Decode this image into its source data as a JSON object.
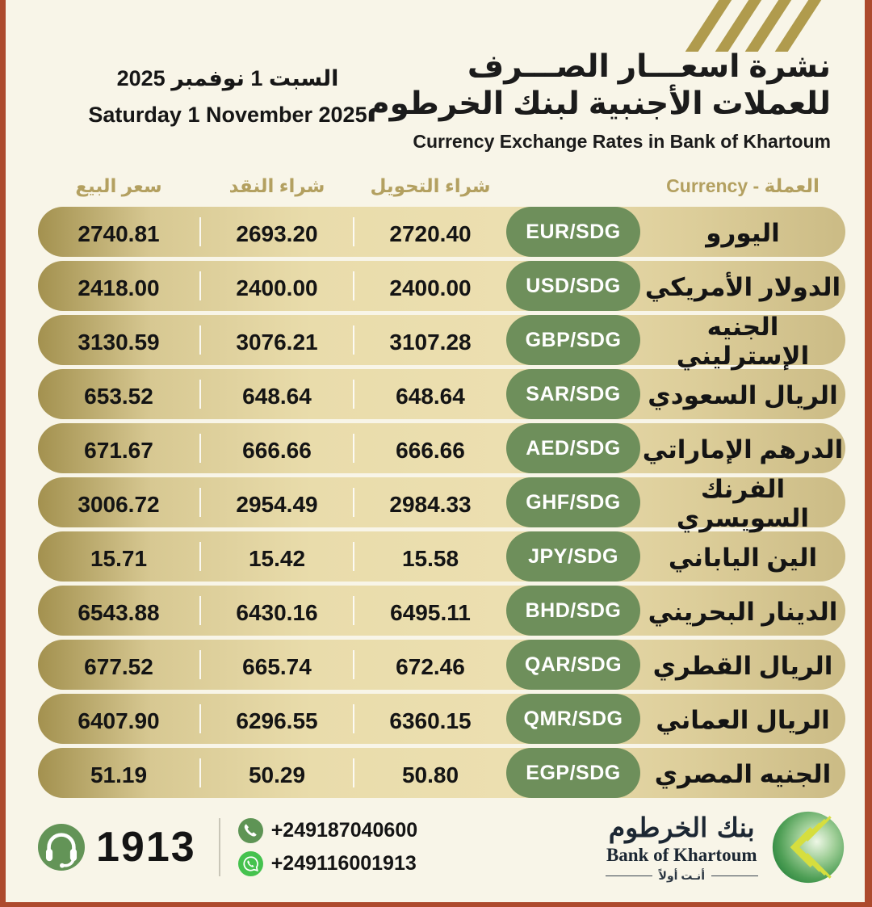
{
  "page": {
    "card_bg": "#f8f5e8",
    "frame_color": "#ad4a2d",
    "stripe_color": "#b09b4d"
  },
  "header": {
    "title_ar_line1": "نشرة اسعـــار الصـــرف",
    "title_ar_line2": "للعملات الأجنبية لبنك الخرطوم",
    "title_en": "Currency Exchange Rates in Bank of Khartoum",
    "date_ar": "السبت 1 نوفمبر 2025",
    "date_en": "Saturday 1 November 2025"
  },
  "table": {
    "headers": {
      "sell": "سعر البيع",
      "cash_buy": "شراء النقد",
      "transfer_buy": "شراء التحويل",
      "currency": "العملة - Currency"
    },
    "rows": [
      {
        "name_ar": "اليورو",
        "code": "EUR/SDG",
        "transfer_buy": "2720.40",
        "cash_buy": "2693.20",
        "sell": "2740.81"
      },
      {
        "name_ar": "الدولار الأمريكي",
        "code": "USD/SDG",
        "transfer_buy": "2400.00",
        "cash_buy": "2400.00",
        "sell": "2418.00"
      },
      {
        "name_ar": "الجنيه الإسترليني",
        "code": "GBP/SDG",
        "transfer_buy": "3107.28",
        "cash_buy": "3076.21",
        "sell": "3130.59"
      },
      {
        "name_ar": "الريال السعودي",
        "code": "SAR/SDG",
        "transfer_buy": "648.64",
        "cash_buy": "648.64",
        "sell": "653.52"
      },
      {
        "name_ar": "الدرهم الإماراتي",
        "code": "AED/SDG",
        "transfer_buy": "666.66",
        "cash_buy": "666.66",
        "sell": "671.67"
      },
      {
        "name_ar": "الفرنك السويسري",
        "code": "GHF/SDG",
        "transfer_buy": "2984.33",
        "cash_buy": "2954.49",
        "sell": "3006.72"
      },
      {
        "name_ar": "الين الياباني",
        "code": "JPY/SDG",
        "transfer_buy": "15.58",
        "cash_buy": "15.42",
        "sell": "15.71"
      },
      {
        "name_ar": "الدينار البحريني",
        "code": "BHD/SDG",
        "transfer_buy": "6495.11",
        "cash_buy": "6430.16",
        "sell": "6543.88"
      },
      {
        "name_ar": "الريال القطري",
        "code": "QAR/SDG",
        "transfer_buy": "672.46",
        "cash_buy": "665.74",
        "sell": "677.52"
      },
      {
        "name_ar": "الريال العماني",
        "code": "QMR/SDG",
        "transfer_buy": "6360.15",
        "cash_buy": "6296.55",
        "sell": "6407.90"
      },
      {
        "name_ar": "الجنيه المصري",
        "code": "EGP/SDG",
        "transfer_buy": "50.80",
        "cash_buy": "50.29",
        "sell": "51.19"
      }
    ]
  },
  "footer": {
    "call_center": "1913",
    "phone": "+249187040600",
    "whatsapp": "+249116001913",
    "logo": {
      "name_ar": "بنك الخرطوم",
      "name_en": "Bank of Khartoum",
      "tagline_ar": "أنـت أولاً"
    }
  },
  "colors": {
    "badge_green": "#6e8f5b",
    "header_gold": "#b3a060",
    "row_gradient_dark": "#a3914f",
    "row_gradient_light": "#ecdfb0",
    "call_green": "#639457",
    "whatsapp_green": "#45c24e"
  }
}
